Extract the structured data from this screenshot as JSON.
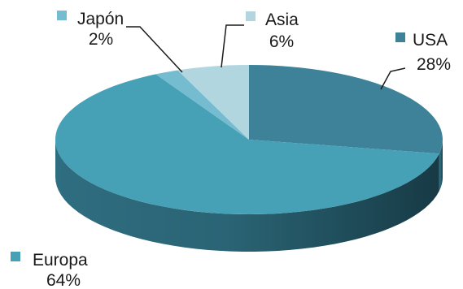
{
  "chart_data": {
    "type": "pie",
    "style": "3d",
    "legend": "labels-inline",
    "slices": [
      {
        "name": "USA",
        "value": 28,
        "label": "28%",
        "color": "#3d8299"
      },
      {
        "name": "Europa",
        "value": 64,
        "label": "64%",
        "color": "#46a1b7"
      },
      {
        "name": "Japón",
        "value": 2,
        "label": "2%",
        "color": "#76bcd0"
      },
      {
        "name": "Asia",
        "value": 6,
        "label": "6%",
        "color": "#b2d6e0"
      }
    ]
  }
}
